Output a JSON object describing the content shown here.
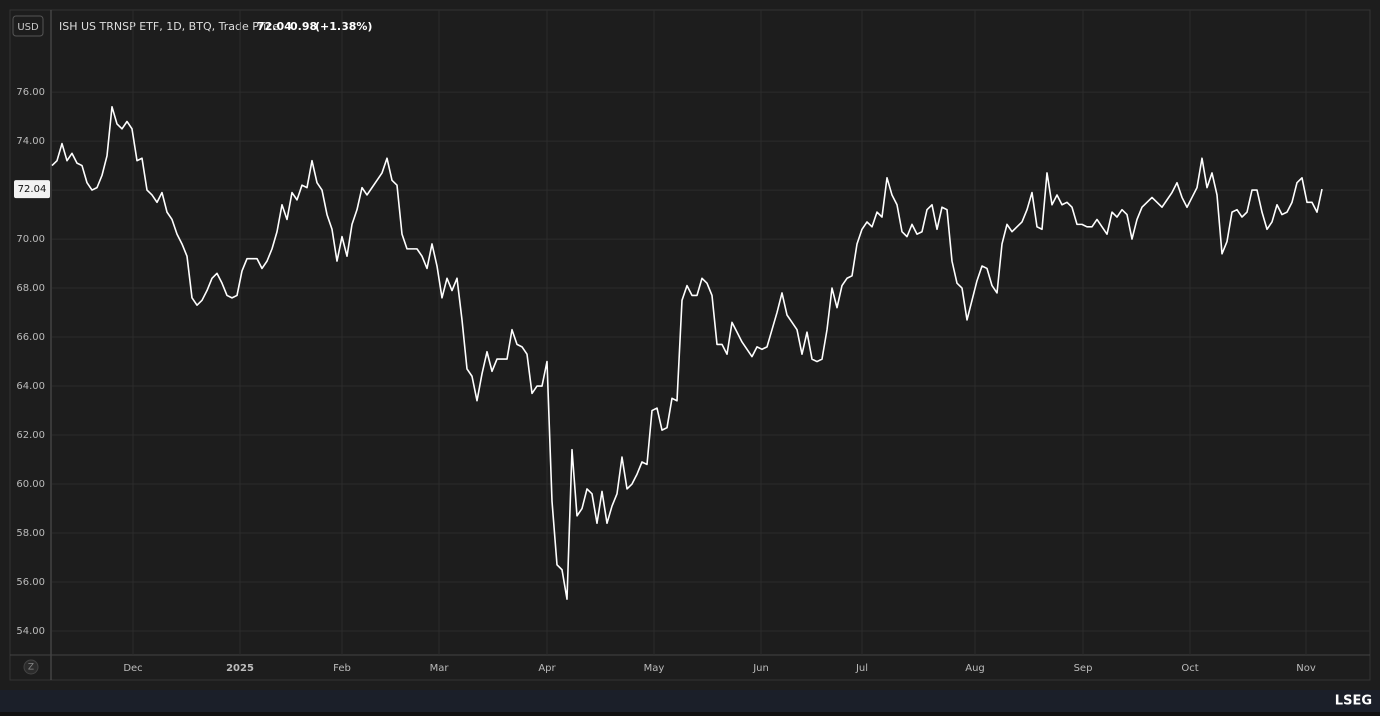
{
  "chart_data": {
    "type": "line",
    "currency": "USD",
    "title": "ISH US TRNSP ETF, 1D, BTQ, Trade Price",
    "last_price": 72.04,
    "change": 0.98,
    "change_pct": "(+1.38%)",
    "footer": "LSEG",
    "zoom_label": "Z",
    "color": "#ffffff",
    "grid": true,
    "ylim": [
      53.02,
      79.27
    ],
    "yticks": [
      {
        "value": 54,
        "label": "54.00"
      },
      {
        "value": 56,
        "label": "56.00"
      },
      {
        "value": 58,
        "label": "58.00"
      },
      {
        "value": 60,
        "label": "60.00"
      },
      {
        "value": 62,
        "label": "62.00"
      },
      {
        "value": 64,
        "label": "64.00"
      },
      {
        "value": 66,
        "label": "66.00"
      },
      {
        "value": 68,
        "label": "68.00"
      },
      {
        "value": 70,
        "label": "70.00"
      },
      {
        "value": 72,
        "label": "72.00"
      },
      {
        "value": 74,
        "label": "74.00"
      },
      {
        "value": 76,
        "label": "76.00"
      }
    ],
    "xlim": [
      0,
      263.6
    ],
    "xticks": [
      {
        "value": 16.2,
        "label": "Dec"
      },
      {
        "value": 37.6,
        "label": "2025"
      },
      {
        "value": 58,
        "label": "Feb"
      },
      {
        "value": 77.4,
        "label": "Mar"
      },
      {
        "value": 99,
        "label": "Apr"
      },
      {
        "value": 120.4,
        "label": "May"
      },
      {
        "value": 141.8,
        "label": "Jun"
      },
      {
        "value": 162,
        "label": "Jul"
      },
      {
        "value": 184.6,
        "label": "Aug"
      },
      {
        "value": 206.2,
        "label": "Sep"
      },
      {
        "value": 227.6,
        "label": "Oct"
      },
      {
        "value": 250.8,
        "label": "Nov"
      }
    ],
    "values": [
      73.0,
      73.2,
      73.9,
      73.2,
      73.5,
      73.1,
      73.0,
      72.3,
      72.0,
      72.1,
      72.6,
      73.4,
      75.4,
      74.7,
      74.5,
      74.8,
      74.5,
      73.2,
      73.3,
      72.0,
      71.8,
      71.5,
      71.9,
      71.1,
      70.8,
      70.2,
      69.8,
      69.3,
      67.6,
      67.3,
      67.5,
      67.9,
      68.4,
      68.6,
      68.2,
      67.7,
      67.6,
      67.7,
      68.7,
      69.2,
      69.2,
      69.2,
      68.8,
      69.1,
      69.6,
      70.3,
      71.4,
      70.8,
      71.9,
      71.6,
      72.2,
      72.1,
      73.2,
      72.3,
      72.0,
      71.0,
      70.4,
      69.1,
      70.1,
      69.3,
      70.6,
      71.2,
      72.1,
      71.8,
      72.1,
      72.4,
      72.7,
      73.3,
      72.4,
      72.2,
      70.2,
      69.6,
      69.6,
      69.6,
      69.3,
      68.8,
      69.8,
      68.9,
      67.6,
      68.4,
      67.9,
      68.4,
      66.7,
      64.7,
      64.4,
      63.4,
      64.5,
      65.4,
      64.6,
      65.1,
      65.1,
      65.1,
      66.3,
      65.7,
      65.6,
      65.3,
      63.7,
      64.0,
      64.0,
      65.0,
      59.3,
      56.7,
      56.5,
      55.3,
      61.4,
      58.7,
      59.0,
      59.8,
      59.6,
      58.4,
      59.7,
      58.4,
      59.1,
      59.6,
      61.1,
      59.8,
      60.0,
      60.4,
      60.9,
      60.8,
      63.0,
      63.1,
      62.2,
      62.3,
      63.5,
      63.4,
      67.5,
      68.1,
      67.7,
      67.7,
      68.4,
      68.2,
      67.7,
      65.7,
      65.7,
      65.3,
      66.6,
      66.2,
      65.8,
      65.5,
      65.2,
      65.6,
      65.5,
      65.6,
      66.3,
      67.0,
      67.8,
      66.9,
      66.6,
      66.3,
      65.3,
      66.2,
      65.1,
      65.0,
      65.1,
      66.3,
      68.0,
      67.2,
      68.1,
      68.4,
      68.5,
      69.8,
      70.4,
      70.7,
      70.5,
      71.1,
      70.9,
      72.5,
      71.8,
      71.4,
      70.3,
      70.1,
      70.6,
      70.2,
      70.3,
      71.2,
      71.4,
      70.4,
      71.3,
      71.2,
      69.1,
      68.2,
      68.0,
      66.7,
      67.5,
      68.3,
      68.9,
      68.8,
      68.1,
      67.8,
      69.8,
      70.6,
      70.3,
      70.5,
      70.7,
      71.2,
      71.9,
      70.5,
      70.4,
      72.7,
      71.4,
      71.8,
      71.4,
      71.5,
      71.3,
      70.6,
      70.6,
      70.5,
      70.5,
      70.8,
      70.5,
      70.2,
      71.1,
      70.9,
      71.2,
      71.0,
      70.0,
      70.8,
      71.3,
      71.5,
      71.7,
      71.5,
      71.3,
      71.6,
      71.9,
      72.3,
      71.7,
      71.3,
      71.7,
      72.1,
      73.3,
      72.1,
      72.7,
      71.8,
      69.4,
      69.9,
      71.1,
      71.2,
      70.9,
      71.1,
      72.0,
      72.0,
      71.1,
      70.4,
      70.7,
      71.4,
      71.0,
      71.1,
      71.5,
      72.3,
      72.5,
      71.5,
      71.5,
      71.1,
      72.04
    ]
  }
}
